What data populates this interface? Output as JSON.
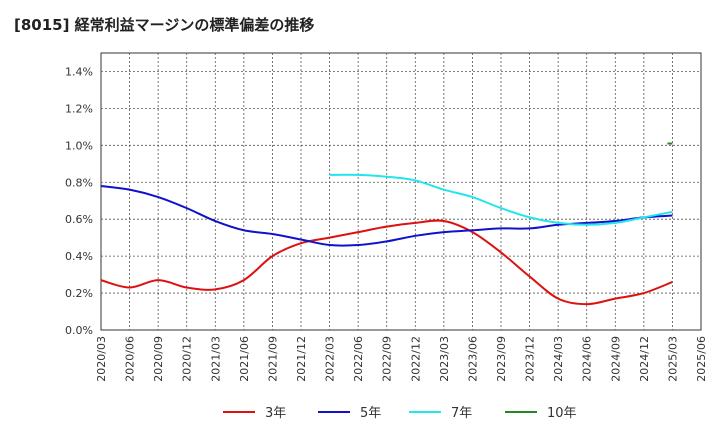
{
  "chart_data": {
    "type": "line",
    "title": "[8015]  経常利益マージンの標準偏差の推移",
    "x": [
      "2020/03",
      "2020/06",
      "2020/09",
      "2020/12",
      "2021/03",
      "2021/06",
      "2021/09",
      "2021/12",
      "2022/03",
      "2022/06",
      "2022/09",
      "2022/12",
      "2023/03",
      "2023/06",
      "2023/09",
      "2023/12",
      "2024/03",
      "2024/06",
      "2024/09",
      "2024/12",
      "2025/03",
      "2025/06"
    ],
    "y_ticks": [
      "0.0%",
      "0.2%",
      "0.4%",
      "0.6%",
      "0.8%",
      "1.0%",
      "1.2%",
      "1.4%"
    ],
    "ylim": [
      0,
      1.5
    ],
    "grid": true,
    "legend_position": "bottom",
    "series": [
      {
        "name": "3年",
        "color": "#dd1111",
        "values": [
          0.27,
          0.23,
          0.27,
          0.23,
          0.22,
          0.27,
          0.4,
          0.47,
          0.5,
          0.53,
          0.56,
          0.58,
          0.59,
          0.53,
          0.42,
          0.29,
          0.17,
          0.14,
          0.17,
          0.2,
          0.26,
          null
        ]
      },
      {
        "name": "5年",
        "color": "#1111cc",
        "values": [
          0.78,
          0.76,
          0.72,
          0.66,
          0.59,
          0.54,
          0.52,
          0.49,
          0.46,
          0.46,
          0.48,
          0.51,
          0.53,
          0.54,
          0.55,
          0.55,
          0.57,
          0.58,
          0.59,
          0.61,
          0.62,
          null
        ]
      },
      {
        "name": "7年",
        "color": "#22e5ee",
        "values": [
          null,
          null,
          null,
          null,
          null,
          null,
          null,
          null,
          0.84,
          0.84,
          0.83,
          0.81,
          0.76,
          0.72,
          0.66,
          0.61,
          0.58,
          0.57,
          0.58,
          0.61,
          0.64,
          null
        ]
      },
      {
        "name": "10年",
        "color": "#228822",
        "values": [
          null,
          null,
          null,
          null,
          null,
          null,
          null,
          null,
          null,
          null,
          null,
          null,
          null,
          null,
          null,
          null,
          null,
          null,
          null,
          null,
          1.01,
          null
        ]
      }
    ]
  }
}
